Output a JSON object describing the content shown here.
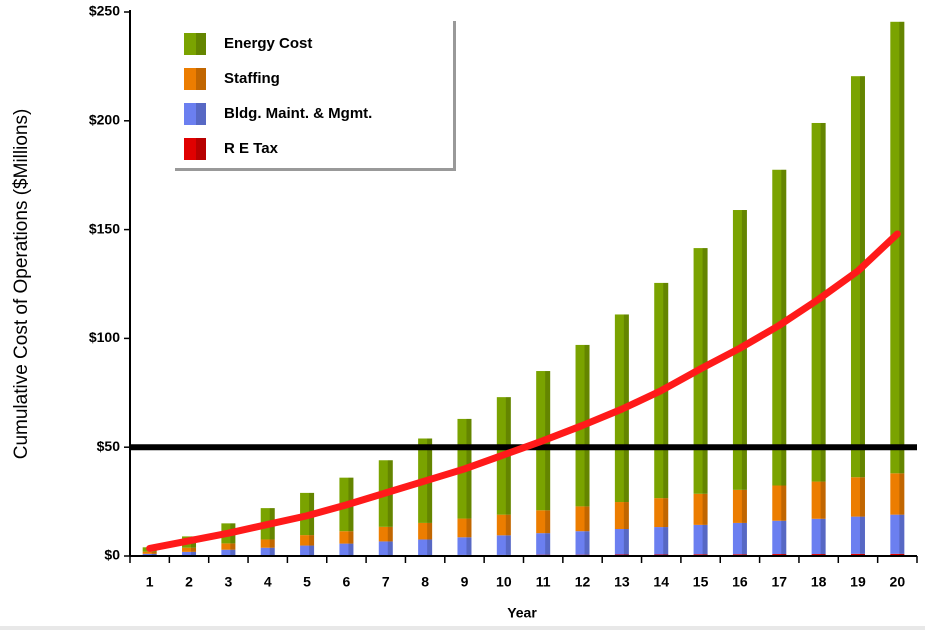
{
  "chart_data": {
    "type": "bar",
    "stacked": true,
    "y_label": "Cumulative Cost of Operations ($Millions)",
    "x_label": "Year",
    "categories": [
      "1",
      "2",
      "3",
      "4",
      "5",
      "6",
      "7",
      "8",
      "9",
      "10",
      "11",
      "12",
      "13",
      "14",
      "15",
      "16",
      "17",
      "18",
      "19",
      "20"
    ],
    "series": [
      {
        "name": "Energy Cost",
        "color": "#7aa300",
        "values": [
          2.0,
          5.2,
          9.2,
          14.4,
          19.4,
          24.6,
          30.6,
          38.8,
          45.8,
          54,
          64,
          74.2,
          86.2,
          98.9,
          112.9,
          128.6,
          145.1,
          164.8,
          184.3,
          207.5
        ]
      },
      {
        "name": "Staffing",
        "color": "#ec7d00",
        "values": [
          1,
          1.9,
          2.9,
          3.8,
          4.8,
          5.7,
          6.7,
          7.6,
          8.6,
          9.5,
          10.5,
          11.4,
          12.4,
          13.3,
          14.3,
          15.2,
          16.2,
          17.1,
          18.1,
          19
        ]
      },
      {
        "name": "Bldg. Maint. & Mgmt.",
        "color": "#6b7ff0",
        "values": [
          0.9,
          1.8,
          2.7,
          3.6,
          4.5,
          5.4,
          6.3,
          7.2,
          8.1,
          9,
          9.9,
          10.8,
          11.7,
          12.6,
          13.5,
          14.4,
          15.3,
          16.2,
          17.1,
          18
        ]
      },
      {
        "name": "R E Tax",
        "color": "#e00000",
        "values": [
          0.1,
          0.1,
          0.2,
          0.2,
          0.3,
          0.3,
          0.4,
          0.4,
          0.5,
          0.5,
          0.6,
          0.6,
          0.7,
          0.7,
          0.8,
          0.8,
          0.9,
          0.9,
          1,
          1
        ]
      }
    ],
    "line": {
      "color": "#ff1a1a",
      "values": [
        3.5,
        7,
        10.5,
        14.5,
        18.5,
        23.5,
        29,
        34.5,
        40,
        46.5,
        53,
        60,
        67.5,
        76,
        86,
        95.5,
        106,
        118,
        131,
        148
      ]
    },
    "hline": {
      "value": 50,
      "color": "#000000"
    },
    "ylim": [
      0,
      250
    ],
    "yticks": [
      {
        "value": 0,
        "label": "$0"
      },
      {
        "value": 50,
        "label": "$50"
      },
      {
        "value": 100,
        "label": "$100"
      },
      {
        "value": 150,
        "label": "$150"
      },
      {
        "value": 200,
        "label": "$200"
      },
      {
        "value": 250,
        "label": "$250"
      }
    ],
    "legend": "top-left"
  }
}
